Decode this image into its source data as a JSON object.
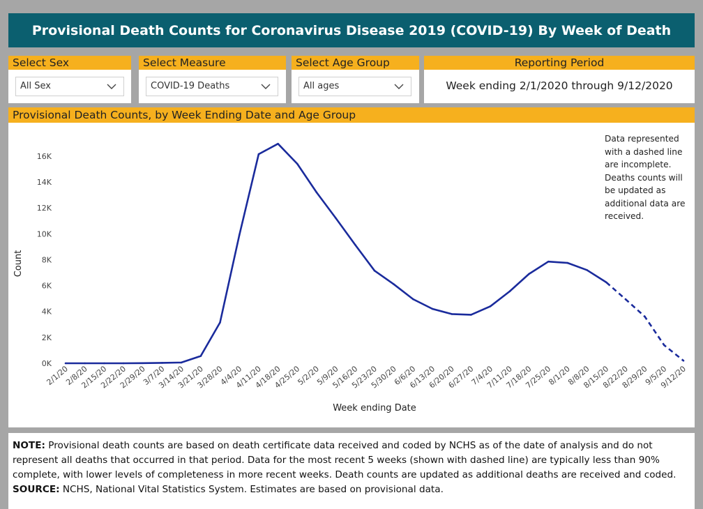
{
  "header": {
    "title": "Provisional Death Counts for Coronavirus Disease 2019 (COVID-19) By Week of Death"
  },
  "filters": {
    "sex": {
      "label": "Select Sex",
      "value": "All Sex"
    },
    "measure": {
      "label": "Select Measure",
      "value": "COVID-19 Deaths"
    },
    "age": {
      "label": "Select Age Group",
      "value": "All ages"
    },
    "period": {
      "label": "Reporting Period",
      "value": "Week ending 2/1/2020 through 9/12/2020"
    }
  },
  "chart_panel": {
    "title": "Provisional Death Counts, by Week Ending Date and Age Group"
  },
  "chart_data": {
    "type": "line",
    "title": "Provisional Death Counts, by Week Ending Date and Age Group",
    "xlabel": "Week ending Date",
    "ylabel": "Count",
    "ylim": [
      0,
      17500
    ],
    "yticks": [
      0,
      2000,
      4000,
      6000,
      8000,
      10000,
      12000,
      14000,
      16000
    ],
    "ytick_labels": [
      "0K",
      "2K",
      "4K",
      "6K",
      "8K",
      "10K",
      "12K",
      "14K",
      "16K"
    ],
    "categories": [
      "2/1/20",
      "2/8/20",
      "2/15/20",
      "2/22/20",
      "2/29/20",
      "3/7/20",
      "3/14/20",
      "3/21/20",
      "3/28/20",
      "4/4/20",
      "4/11/20",
      "4/18/20",
      "4/25/20",
      "5/2/20",
      "5/9/20",
      "5/16/20",
      "5/23/20",
      "5/30/20",
      "6/6/20",
      "6/13/20",
      "6/20/20",
      "6/27/20",
      "7/4/20",
      "7/11/20",
      "7/18/20",
      "7/25/20",
      "8/1/20",
      "8/8/20",
      "8/15/20",
      "8/22/20",
      "8/29/20",
      "9/5/20",
      "9/12/20"
    ],
    "series": [
      {
        "name": "COVID-19 Deaths",
        "color": "#1a2b9c",
        "values": [
          0,
          0,
          0,
          0,
          10,
          30,
          60,
          560,
          3150,
          9900,
          16150,
          16950,
          15400,
          13200,
          11200,
          9150,
          7150,
          6100,
          4950,
          4200,
          3800,
          3750,
          4400,
          5550,
          6900,
          7850,
          7750,
          7200,
          6250,
          4950,
          3600,
          1400,
          200
        ],
        "incomplete_from_index": 28
      }
    ],
    "annotation": "Data represented with a dashed line are incomplete. Deaths counts will be updated as additional data are received."
  },
  "note": {
    "note_label": "NOTE:",
    "note_text": " Provisional death counts are based on death certificate data received and coded by NCHS as of the date of analysis and do not represent all deaths that occurred in that period. Data for the most recent 5 weeks (shown with dashed line) are typically less than 90% complete, with lower levels of completeness in more recent weeks.  Death counts are updated as additional deaths are received and coded.",
    "source_label": "SOURCE:",
    "source_text": " NCHS, National Vital Statistics System. Estimates are based on provisional data."
  }
}
